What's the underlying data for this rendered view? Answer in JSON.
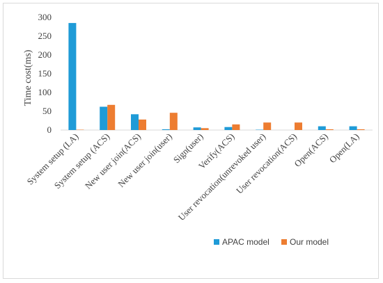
{
  "chart_data": {
    "type": "bar",
    "title": "",
    "xlabel": "",
    "ylabel": "Time cost(ms)",
    "ylim": [
      0,
      300
    ],
    "yticks": [
      0,
      50,
      100,
      150,
      200,
      250,
      300
    ],
    "grid": false,
    "legend_position": "bottom-right",
    "categories": [
      "System setup (LA)",
      "System setup (ACS)",
      "New user join(ACS)",
      "New user join(user)",
      "Sign(user)",
      "Verify(ACS)",
      "User revocation(unrevoked user)",
      "User revocation(ACS)",
      "Open(ACS)",
      "Open(LA)"
    ],
    "series": [
      {
        "name": "APAC model",
        "color": "#1f9bd7",
        "values": [
          285,
          62,
          42,
          2,
          7,
          8,
          1,
          0,
          10,
          10
        ]
      },
      {
        "name": "Our model",
        "color": "#ed7d31",
        "values": [
          1,
          67,
          28,
          46,
          5,
          15,
          20,
          20,
          2,
          2
        ]
      }
    ]
  }
}
